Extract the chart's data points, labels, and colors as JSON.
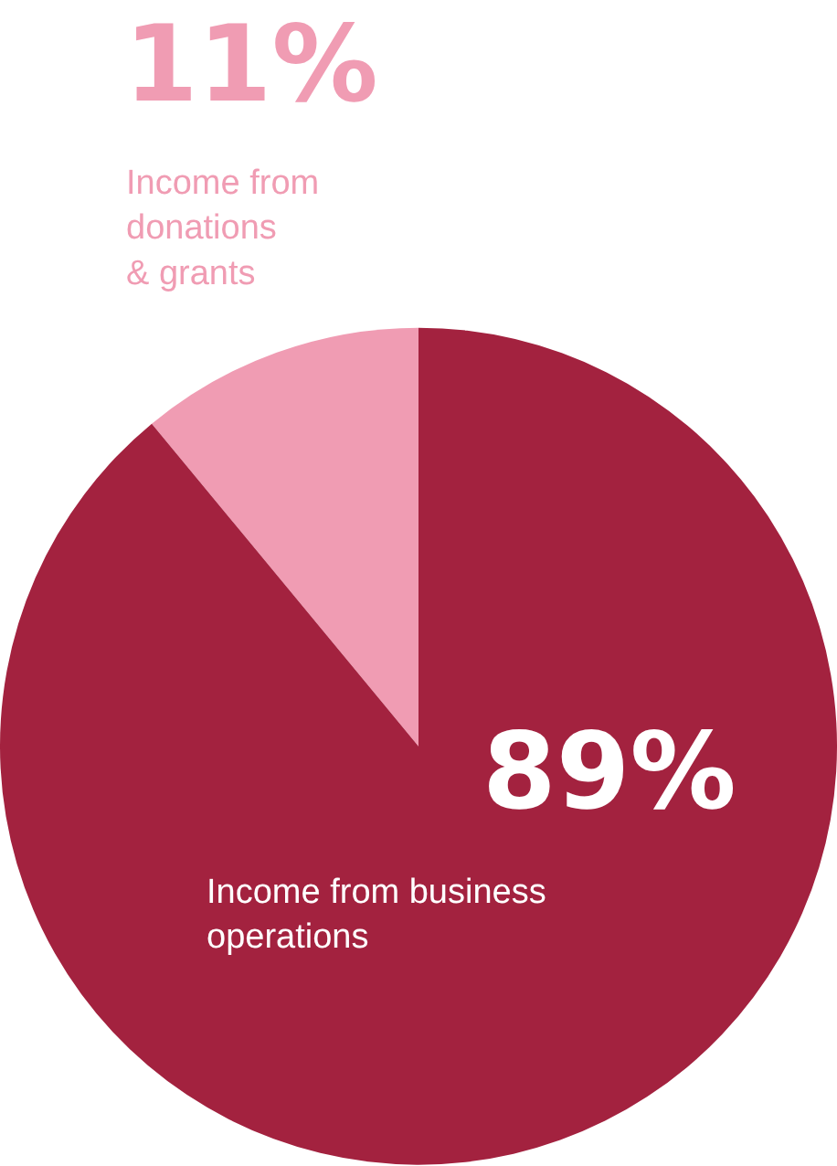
{
  "chart_data": {
    "type": "pie",
    "categories": [
      "Income from donations & grants",
      "Income from business operations"
    ],
    "values": [
      11,
      89
    ],
    "value_labels": [
      "11%",
      "89%"
    ],
    "colors": [
      "#f09cb3",
      "#a3223f"
    ],
    "legend": false
  }
}
